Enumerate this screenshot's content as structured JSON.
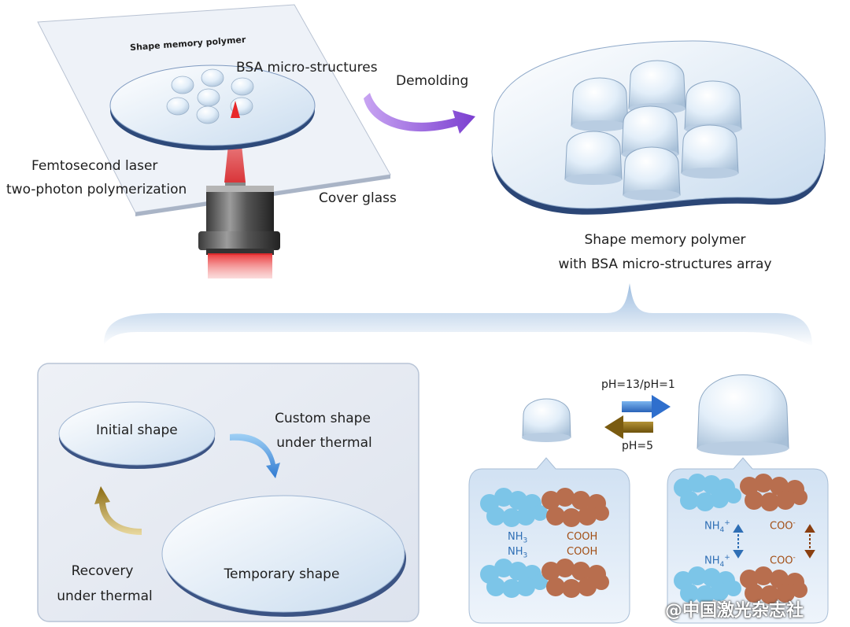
{
  "labels": {
    "shape_memory_polymer_top": "Shape memory polymer",
    "bsa_micro_structures": "BSA micro-structures",
    "demolding": "Demolding",
    "femtosecond_laser": "Femtosecond laser",
    "two_photon": "two-photon polymerization",
    "cover_glass": "Cover glass",
    "array_line1": "Shape memory polymer",
    "array_line2": "with BSA micro-structures array",
    "initial_shape": "Initial shape",
    "custom_shape_line1": "Custom  shape",
    "custom_shape_line2": "under thermal",
    "recovery_line1": "Recovery",
    "recovery_line2": "under thermal",
    "temporary_shape": "Temporary shape",
    "ph_high": "pH=13/pH=1",
    "ph_low": "pH=5"
  },
  "chem": {
    "nh": "NH",
    "three": "3",
    "cooh": "COOH",
    "nh4": "NH",
    "four": "4",
    "plus": "+",
    "coo": "COO",
    "minus": "-"
  },
  "watermark": "@中国激光杂志社",
  "colors": {
    "purple_arrow": "#7b3fd0",
    "blue_arrow": "#2f7ad1",
    "gold_arrow": "#8a6a10",
    "laser_red": "#e8282a",
    "protein_blue": "#7cc5e8",
    "protein_brown": "#b86e4e",
    "disk_edge": "#3c5484"
  }
}
